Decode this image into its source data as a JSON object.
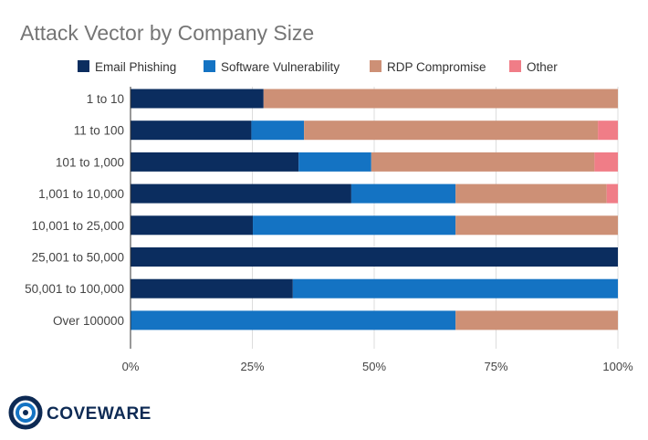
{
  "chart_data": {
    "type": "bar",
    "orientation": "horizontal",
    "stacked": "percent",
    "title": "Attack Vector by Company Size",
    "categories": [
      "1 to 10",
      "11 to 100",
      "101 to 1,000",
      "1,001 to 10,000",
      "10,001 to 25,000",
      "25,001 to 50,000",
      "50,001 to 100,000",
      "Over 100000"
    ],
    "series": [
      {
        "name": "Email Phishing",
        "color": "#0b2d5f",
        "values": [
          27.3,
          24.8,
          34.5,
          45.3,
          25.1,
          100,
          33.3,
          0
        ]
      },
      {
        "name": "Software Vulnerability",
        "color": "#1473c3",
        "values": [
          0,
          10.8,
          14.9,
          21.4,
          41.6,
          0,
          66.7,
          66.7
        ]
      },
      {
        "name": "RDP Compromise",
        "color": "#cd9076",
        "values": [
          72.7,
          60.3,
          45.8,
          31.0,
          33.3,
          0,
          0,
          33.3
        ]
      },
      {
        "name": "Other",
        "color": "#f07d87",
        "values": [
          0,
          4.1,
          4.8,
          2.3,
          0,
          0,
          0,
          0
        ]
      }
    ],
    "xaxis": {
      "ticks": [
        "0%",
        "25%",
        "50%",
        "75%",
        "100%"
      ],
      "range": [
        0,
        100
      ]
    },
    "grid": true,
    "legend_position": "top"
  },
  "logo": {
    "text": "COVEWARE"
  }
}
